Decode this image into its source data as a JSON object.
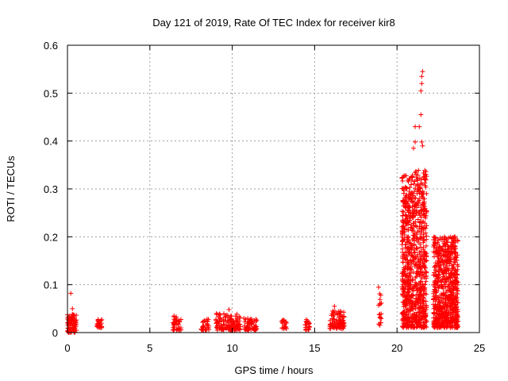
{
  "chart_data": {
    "type": "scatter",
    "title": "Day 121 of 2019, Rate Of TEC Index for receiver kir8",
    "xlabel": "GPS time / hours",
    "ylabel": "ROTI / TECUs",
    "xlim": [
      0,
      25
    ],
    "ylim": [
      0,
      0.6
    ],
    "grid": true,
    "marker": "+",
    "marker_color": "#ff0000",
    "x_ticks": [
      0,
      5,
      10,
      15,
      20,
      25
    ],
    "x_tick_labels": [
      "0",
      "5",
      "10",
      "15",
      "20",
      "25"
    ],
    "y_ticks": [
      0,
      0.1,
      0.2,
      0.3,
      0.4,
      0.5,
      0.6
    ],
    "y_tick_labels": [
      "0",
      "0.1",
      "0.2",
      "0.3",
      "0.4",
      "0.5",
      "0.6"
    ],
    "clusters": [
      {
        "x_start": 0.0,
        "x_end": 0.55,
        "y_min": 0.0,
        "y_max": 0.04,
        "count": 90
      },
      {
        "x_start": 1.8,
        "x_end": 2.1,
        "y_min": 0.01,
        "y_max": 0.028,
        "count": 28
      },
      {
        "x_start": 6.4,
        "x_end": 6.9,
        "y_min": 0.005,
        "y_max": 0.035,
        "count": 40
      },
      {
        "x_start": 8.1,
        "x_end": 8.6,
        "y_min": 0.005,
        "y_max": 0.028,
        "count": 30
      },
      {
        "x_start": 9.0,
        "x_end": 10.5,
        "y_min": 0.005,
        "y_max": 0.04,
        "count": 140
      },
      {
        "x_start": 10.7,
        "x_end": 11.5,
        "y_min": 0.005,
        "y_max": 0.03,
        "count": 60
      },
      {
        "x_start": 13.0,
        "x_end": 13.3,
        "y_min": 0.008,
        "y_max": 0.03,
        "count": 24
      },
      {
        "x_start": 14.4,
        "x_end": 14.7,
        "y_min": 0.005,
        "y_max": 0.028,
        "count": 24
      },
      {
        "x_start": 15.9,
        "x_end": 16.8,
        "y_min": 0.008,
        "y_max": 0.045,
        "count": 90
      },
      {
        "x_start": 18.85,
        "x_end": 19.05,
        "y_min": 0.015,
        "y_max": 0.095,
        "count": 18
      },
      {
        "x_start": 20.3,
        "x_end": 21.0,
        "y_min": 0.01,
        "y_max": 0.33,
        "count": 420
      },
      {
        "x_start": 21.0,
        "x_end": 21.8,
        "y_min": 0.01,
        "y_max": 0.34,
        "count": 420
      },
      {
        "x_start": 22.2,
        "x_end": 23.7,
        "y_min": 0.01,
        "y_max": 0.2,
        "count": 700
      }
    ],
    "outliers": [
      {
        "x": 0.2,
        "y": 0.082
      },
      {
        "x": 0.3,
        "y": 0.05
      },
      {
        "x": 9.8,
        "y": 0.048
      },
      {
        "x": 16.2,
        "y": 0.055
      },
      {
        "x": 21.0,
        "y": 0.385
      },
      {
        "x": 21.1,
        "y": 0.398
      },
      {
        "x": 21.5,
        "y": 0.398
      },
      {
        "x": 21.55,
        "y": 0.39
      },
      {
        "x": 21.1,
        "y": 0.43
      },
      {
        "x": 21.35,
        "y": 0.43
      },
      {
        "x": 21.45,
        "y": 0.455
      },
      {
        "x": 21.5,
        "y": 0.52
      },
      {
        "x": 21.5,
        "y": 0.535
      },
      {
        "x": 21.55,
        "y": 0.545
      },
      {
        "x": 21.45,
        "y": 0.505
      }
    ]
  }
}
